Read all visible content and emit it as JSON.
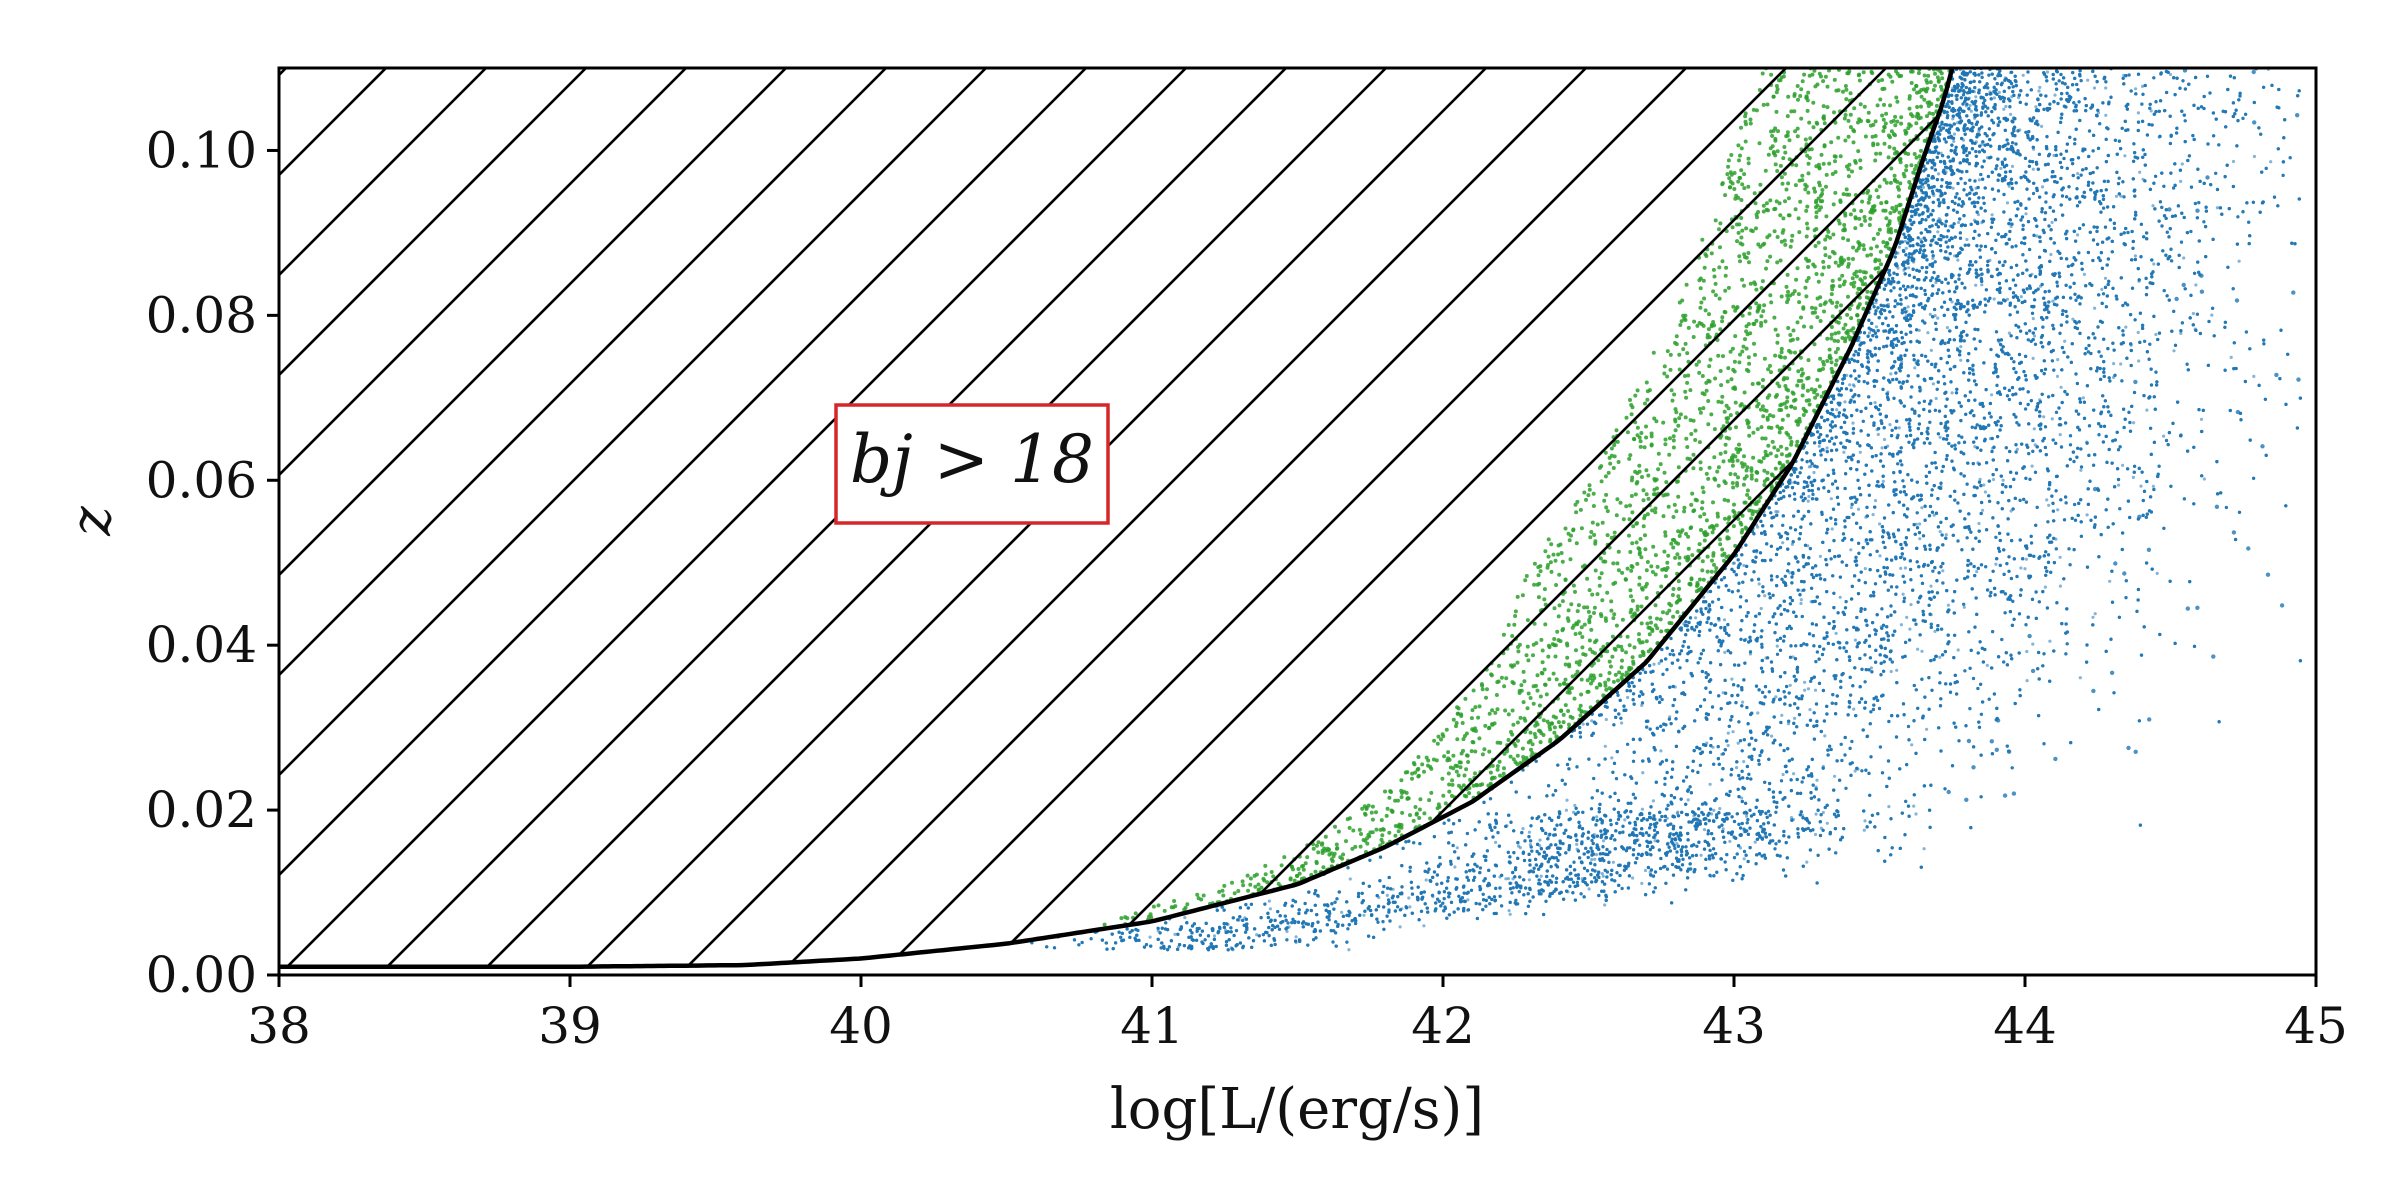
{
  "chart_data": {
    "type": "scatter",
    "title": "",
    "xlabel": "log[L/(erg/s)]",
    "ylabel": "z",
    "xlim": [
      38,
      45
    ],
    "ylim": [
      0,
      0.11
    ],
    "x_ticks": [
      "38",
      "39",
      "40",
      "41",
      "42",
      "43",
      "44",
      "45"
    ],
    "y_ticks": [
      "0.00",
      "0.02",
      "0.04",
      "0.06",
      "0.08",
      "0.10"
    ],
    "grid": false,
    "legend": "none",
    "colors": {
      "main_points": "#1f77b4",
      "faint_points": "#2ca02c",
      "limit_curve": "#000000",
      "annotation_border": "#d62728"
    },
    "annotation": {
      "text": "bj > 18",
      "x": 40.4,
      "y": 0.0615
    },
    "hatched_region": {
      "description_of_boundary": "region above the bj = 18 flux-limit curve is hatched",
      "pattern": "diagonal lines"
    },
    "limit_curve": {
      "name": "",
      "x": [
        38.0,
        39.0,
        39.6,
        40.0,
        40.5,
        41.0,
        41.5,
        41.8,
        42.1,
        42.4,
        42.7,
        43.0,
        43.2,
        43.4,
        43.55,
        43.65,
        43.72,
        43.75
      ],
      "y": [
        0.001,
        0.001,
        0.0012,
        0.002,
        0.0038,
        0.0065,
        0.011,
        0.0155,
        0.021,
        0.0285,
        0.038,
        0.051,
        0.062,
        0.076,
        0.088,
        0.099,
        0.106,
        0.11
      ]
    },
    "series": [
      {
        "name": "",
        "color": "#1f77b4",
        "marker": "dot",
        "approx_point_count": "very dense (~100k+)",
        "ridge_x": [
          41.2,
          41.6,
          42.0,
          42.4,
          42.8,
          43.0,
          43.2,
          43.4,
          43.6,
          43.75,
          43.85,
          43.9
        ],
        "ridge_y": [
          0.005,
          0.007,
          0.009,
          0.012,
          0.018,
          0.025,
          0.035,
          0.045,
          0.058,
          0.07,
          0.085,
          0.1
        ]
      },
      {
        "name": "",
        "color": "#2ca02c",
        "marker": "dot",
        "approx_point_count": "sparse (~3k)",
        "location": "band just to the left of the limit curve"
      }
    ]
  }
}
